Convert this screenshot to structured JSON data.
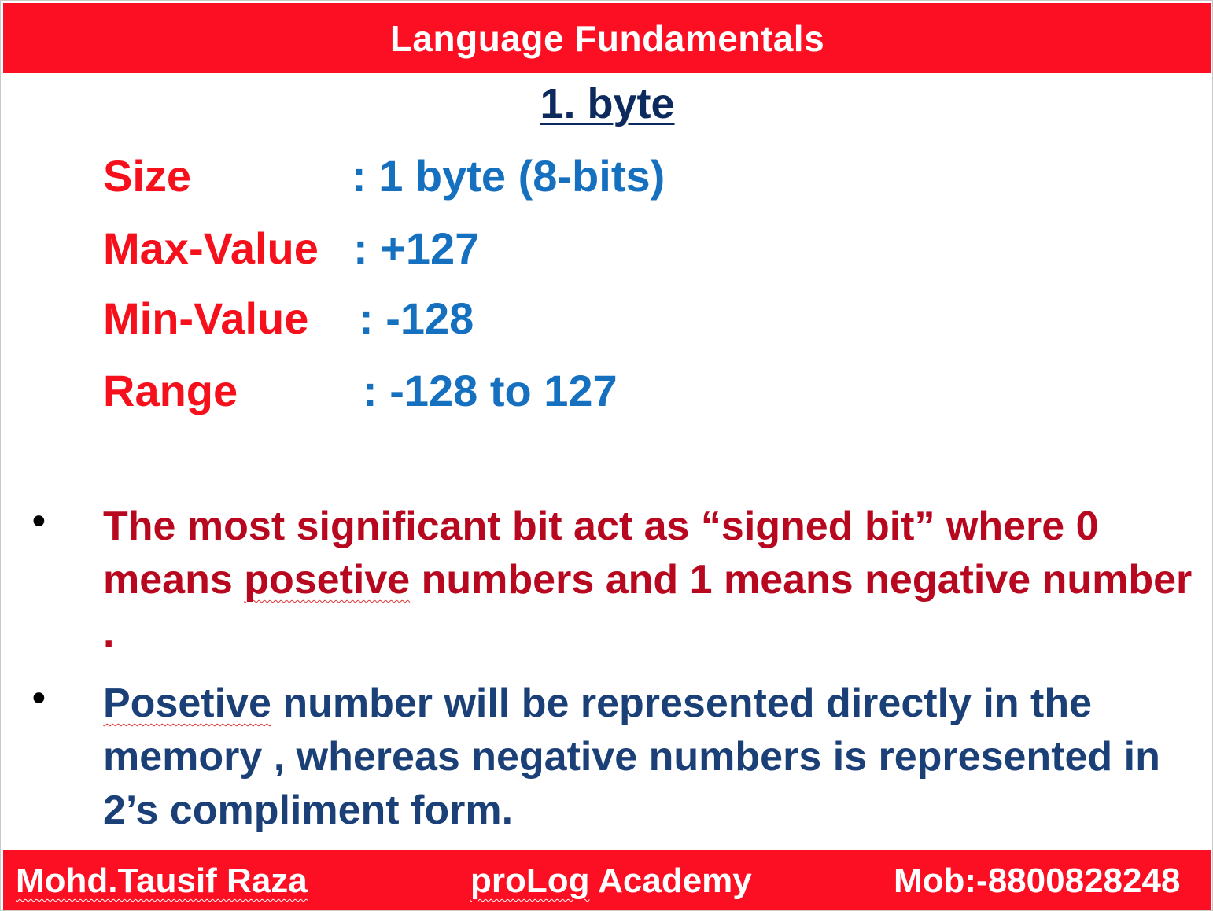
{
  "header": {
    "title": "Language Fundamentals"
  },
  "subtitle": "1. byte",
  "specs": [
    {
      "label": "Size",
      "value": ": 1 byte   (8-bits)"
    },
    {
      "label": "Max-Value",
      "value": ": +127"
    },
    {
      "label": "Min-Value",
      "value": ": -128"
    },
    {
      "label": "Range",
      "value": ": -128  to  127"
    }
  ],
  "bullets": {
    "symbol": "•",
    "first": {
      "part1": "The most significant bit act as “signed bit” where 0 means ",
      "misspelled": "posetive",
      "part2": " numbers and 1 means negative number ."
    },
    "second": {
      "misspelled": "Posetive",
      "part2": " number will be represented directly in the memory , whereas negative numbers is represented in 2’s compliment form."
    }
  },
  "footer": {
    "author": "Mohd.Tausif Raza",
    "academy_underlined": "proLog",
    "academy_rest": " Academy",
    "mobile": "Mob:-8800828248"
  },
  "colors": {
    "banner": "#fd0f23",
    "label_red": "#f5101c",
    "value_blue": "#1670c0",
    "subtitle_navy": "#0d2a5e",
    "bullet_red": "#b8081f",
    "bullet_blue": "#1b3f77"
  }
}
